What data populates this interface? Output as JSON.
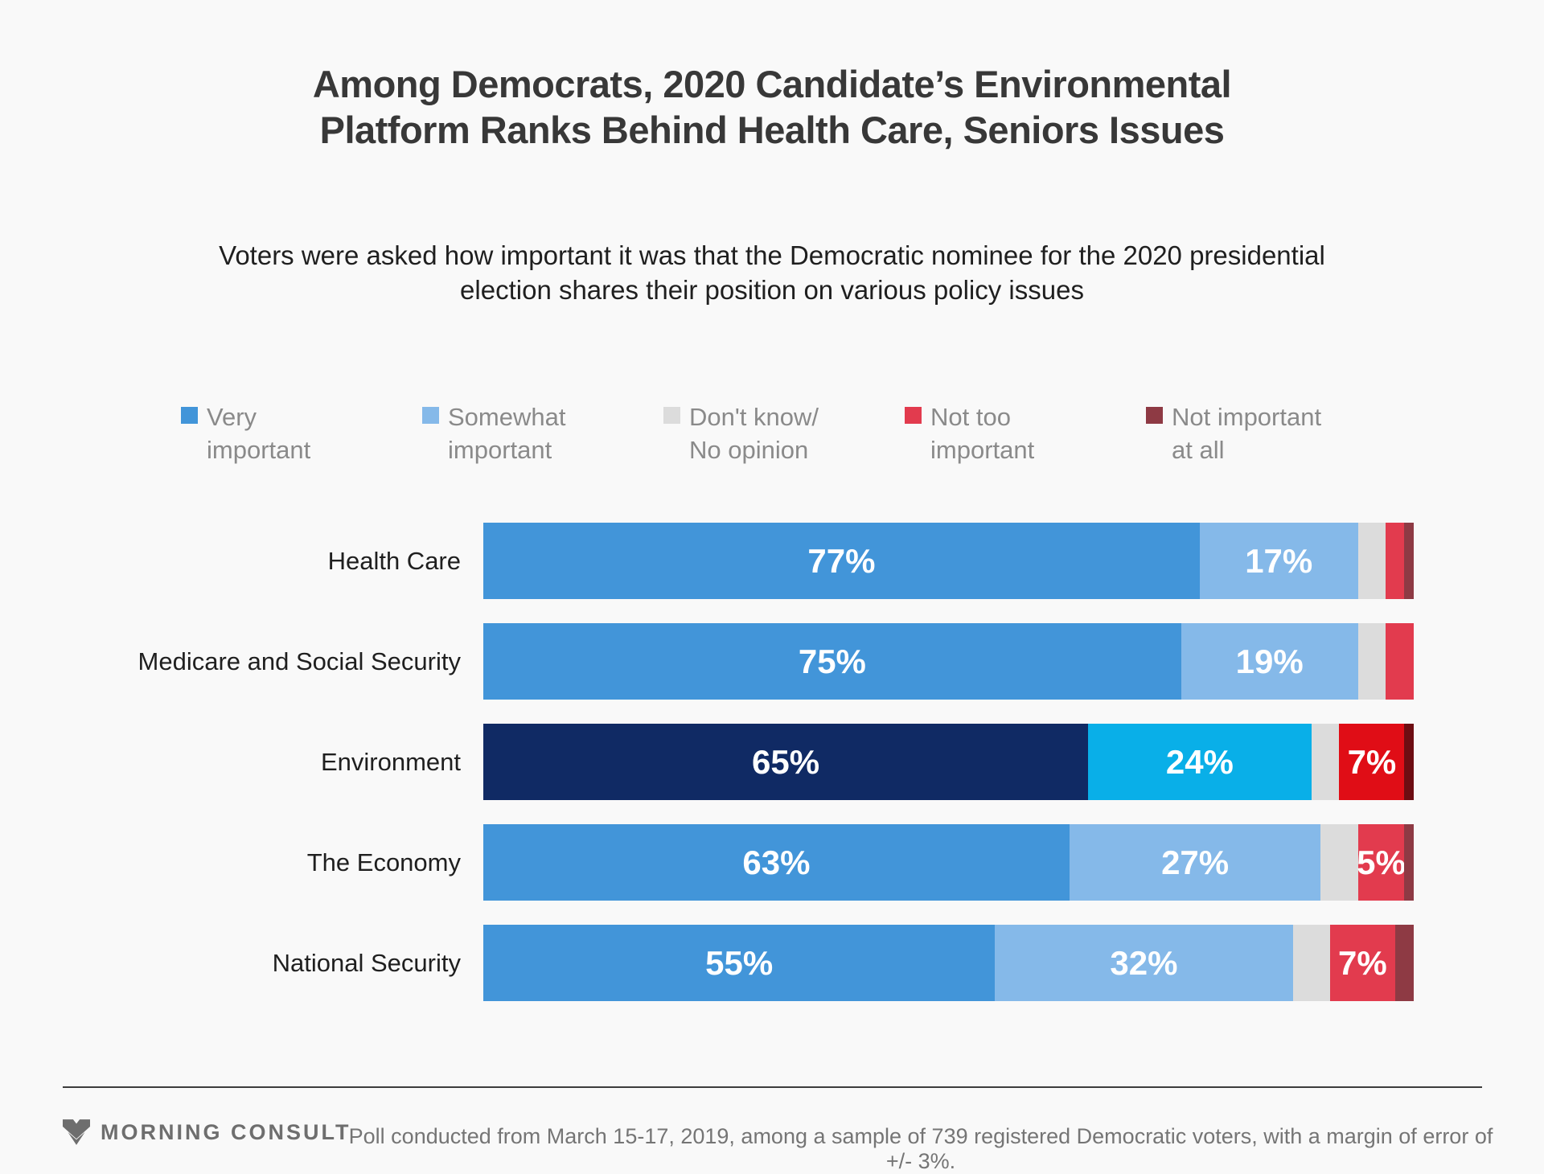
{
  "page": {
    "background": "#f9f9f9"
  },
  "header": {
    "title": "Among Democrats, 2020 Candidate’s Environmental Platform Ranks Behind Health Care, Seniors Issues",
    "subtitle": "Voters were asked how important it was that the Democratic nominee for the 2020 presidential election shares their position on various policy issues"
  },
  "legend": {
    "items": [
      {
        "label": "Very\nimportant",
        "color": "#4295d9"
      },
      {
        "label": "Somewhat\nimportant",
        "color": "#85b9e9"
      },
      {
        "label": "Don't know/\nNo opinion",
        "color": "#dcdcdc"
      },
      {
        "label": "Not too\nimportant",
        "color": "#e23b4e"
      },
      {
        "label": "Not important\nat all",
        "color": "#8e3a44"
      }
    ]
  },
  "chart_data": {
    "type": "bar",
    "orientation": "horizontal",
    "stacked": true,
    "unit": "%",
    "xlim": [
      0,
      100
    ],
    "grid": false,
    "legend_position": "top",
    "categories": [
      "Health Care",
      "Medicare and Social Security",
      "Environment",
      "The Economy",
      "National Security"
    ],
    "series": [
      {
        "name": "Very important",
        "values": [
          77,
          75,
          65,
          63,
          55
        ]
      },
      {
        "name": "Somewhat important",
        "values": [
          17,
          19,
          24,
          27,
          32
        ]
      },
      {
        "name": "Don't know/No opinion",
        "values": [
          3,
          3,
          3,
          4,
          4
        ]
      },
      {
        "name": "Not too important",
        "values": [
          2,
          3,
          7,
          5,
          7
        ]
      },
      {
        "name": "Not important at all",
        "values": [
          1,
          0,
          1,
          1,
          2
        ]
      }
    ],
    "shown_labels": [
      [
        "77%",
        "17%",
        "",
        "",
        ""
      ],
      [
        "75%",
        "19%",
        "",
        "",
        ""
      ],
      [
        "65%",
        "24%",
        "",
        "7%",
        ""
      ],
      [
        "63%",
        "27%",
        "",
        "5%",
        ""
      ],
      [
        "55%",
        "32%",
        "",
        "7%",
        ""
      ]
    ],
    "highlighted_category": "Environment",
    "colors": {
      "default": [
        "#4295d9",
        "#85b9e9",
        "#dcdcdc",
        "#e23b4e",
        "#8e3a44"
      ],
      "highlight": [
        "#102a64",
        "#09afe8",
        "#dcdcdc",
        "#e00d16",
        "#6d0d12"
      ]
    }
  },
  "footer": {
    "brand": "MORNING CONSULT",
    "note": "Poll conducted from March 15-17, 2019, among a sample of 739 registered Democratic voters, with a margin of error of +/- 3%."
  }
}
